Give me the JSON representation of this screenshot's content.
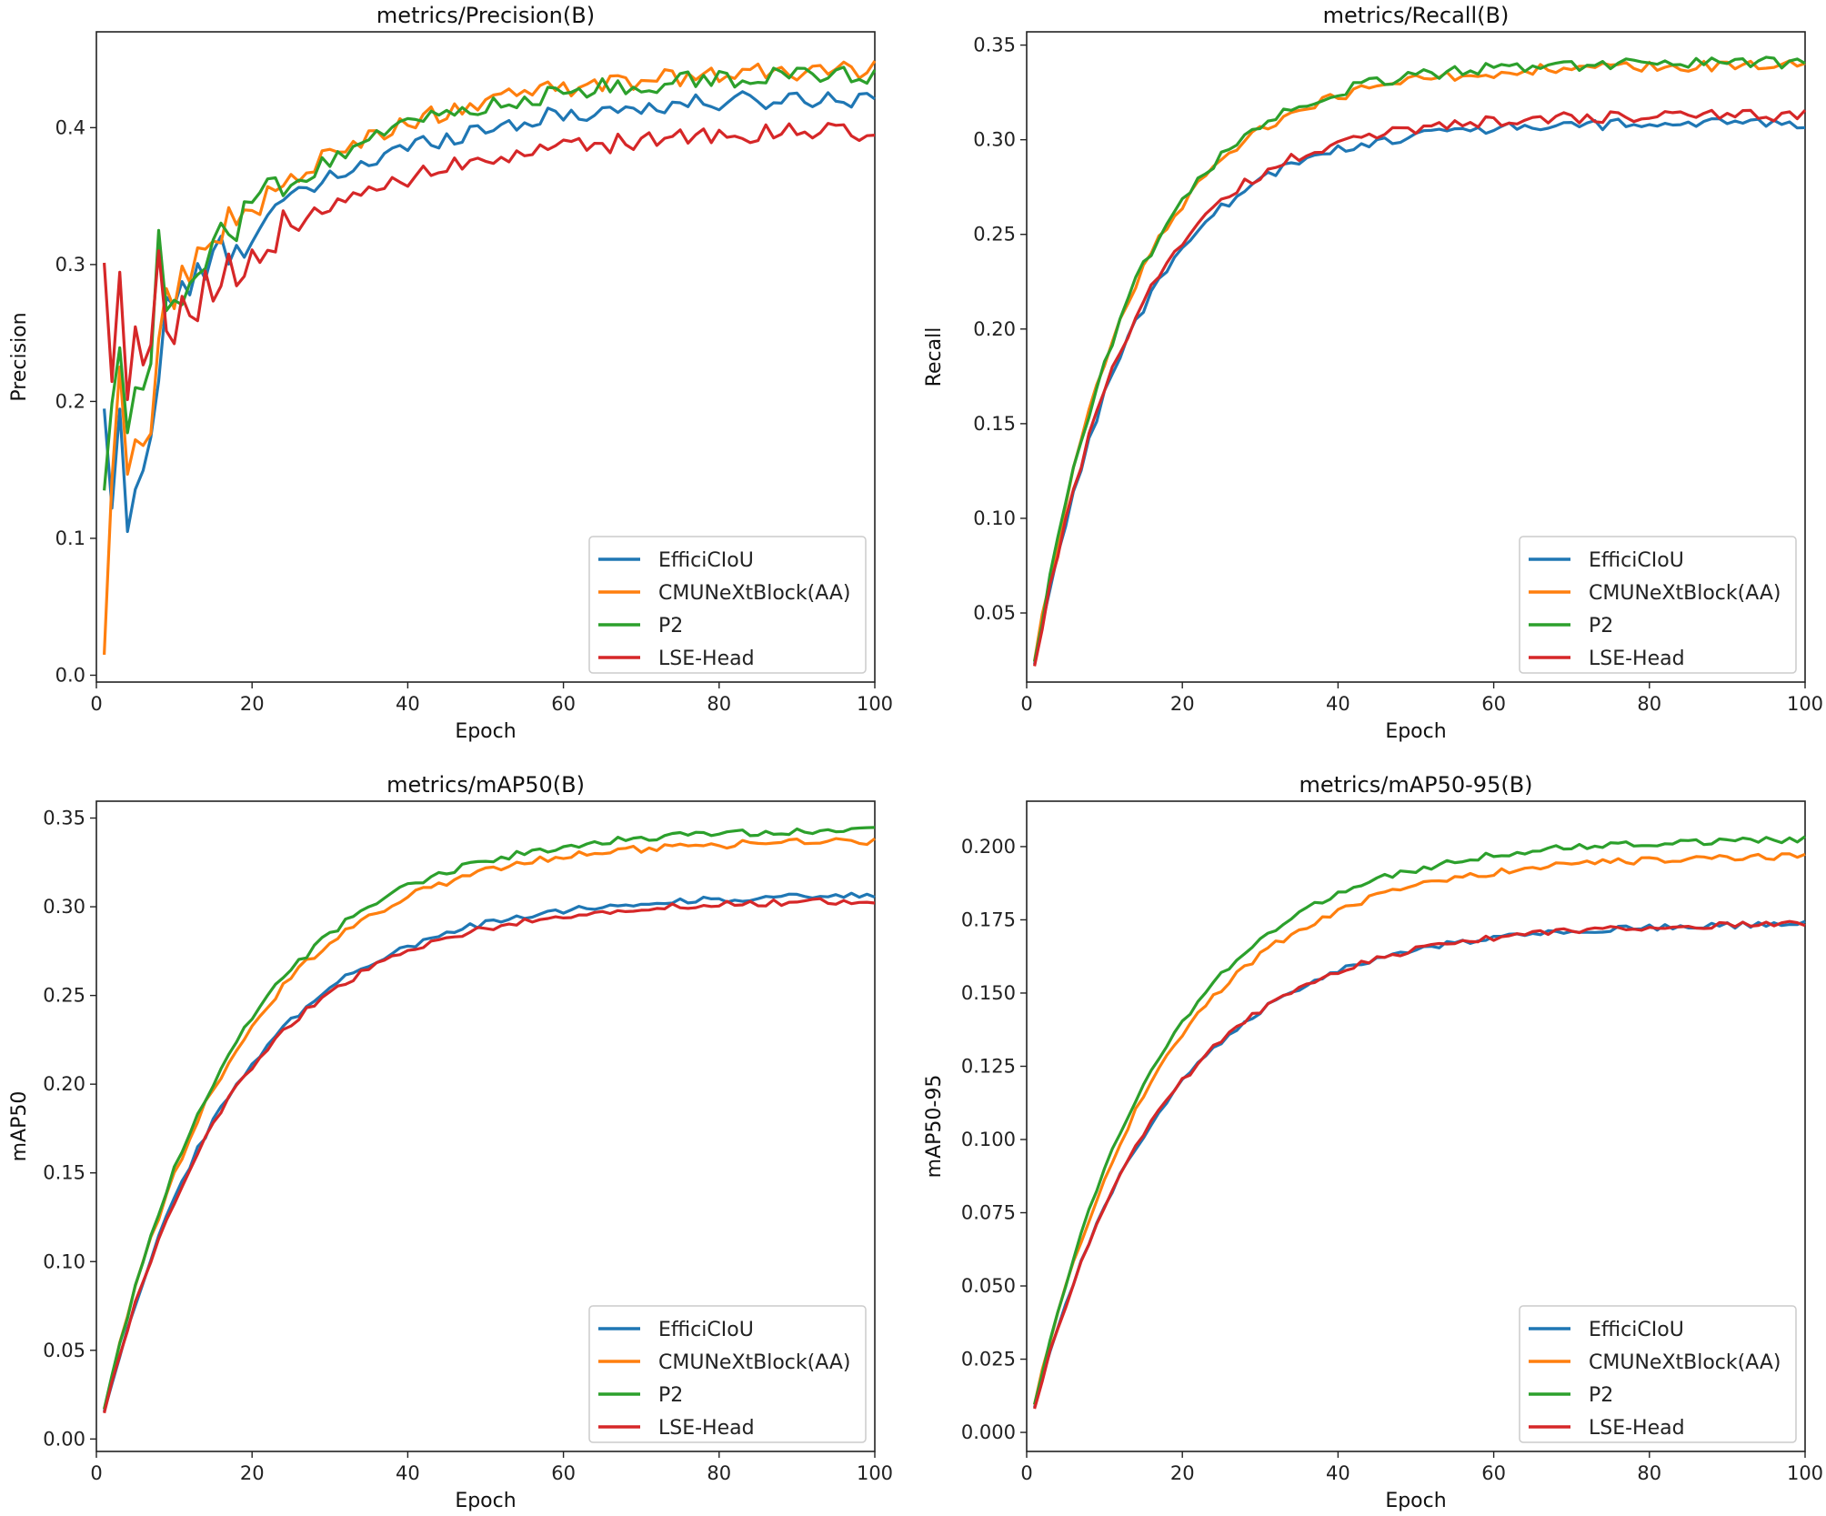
{
  "chart_data": [
    {
      "type": "line",
      "title": "metrics/Precision(B)",
      "xlabel": "Epoch",
      "ylabel": "Precision",
      "xlim": [
        0,
        100
      ],
      "ylim": [
        -0.005,
        0.47
      ],
      "xticks": [
        0,
        20,
        40,
        60,
        80,
        100
      ],
      "yticks": [
        0.0,
        0.1,
        0.2,
        0.3,
        0.4
      ],
      "ytick_decimals": 1,
      "legend": "lower-right",
      "shape": "precision",
      "end_values": {
        "EfficiCIoU": 0.425,
        "CMUNeXtBlock(AA)": 0.445,
        "P2": 0.442,
        "LSE-Head": 0.4
      }
    },
    {
      "type": "line",
      "title": "metrics/Recall(B)",
      "xlabel": "Epoch",
      "ylabel": "Recall",
      "xlim": [
        0,
        100
      ],
      "ylim": [
        0.0135,
        0.357
      ],
      "xticks": [
        0,
        20,
        40,
        60,
        80,
        100
      ],
      "yticks": [
        0.05,
        0.1,
        0.15,
        0.2,
        0.25,
        0.3,
        0.35
      ],
      "ytick_decimals": 2,
      "legend": "lower-right",
      "shape": "recall",
      "end_values": {
        "EfficiCIoU": 0.309,
        "CMUNeXtBlock(AA)": 0.339,
        "P2": 0.341,
        "LSE-Head": 0.313
      }
    },
    {
      "type": "line",
      "title": "metrics/mAP50(B)",
      "xlabel": "Epoch",
      "ylabel": "mAP50",
      "xlim": [
        0,
        100
      ],
      "ylim": [
        -0.007,
        0.3595
      ],
      "xticks": [
        0,
        20,
        40,
        60,
        80,
        100
      ],
      "yticks": [
        0.0,
        0.05,
        0.1,
        0.15,
        0.2,
        0.25,
        0.3,
        0.35
      ],
      "ytick_decimals": 2,
      "legend": "lower-right",
      "shape": "map",
      "end_values": {
        "EfficiCIoU": 0.307,
        "CMUNeXtBlock(AA)": 0.338,
        "P2": 0.344,
        "LSE-Head": 0.304
      }
    },
    {
      "type": "line",
      "title": "metrics/mAP50-95(B)",
      "xlabel": "Epoch",
      "ylabel": "mAP50-95",
      "xlim": [
        0,
        100
      ],
      "ylim": [
        -0.0065,
        0.2155
      ],
      "xticks": [
        0,
        20,
        40,
        60,
        80,
        100
      ],
      "yticks": [
        0.0,
        0.025,
        0.05,
        0.075,
        0.1,
        0.125,
        0.15,
        0.175,
        0.2
      ],
      "ytick_decimals": 3,
      "legend": "lower-right",
      "shape": "map",
      "end_values": {
        "EfficiCIoU": 0.174,
        "CMUNeXtBlock(AA)": 0.197,
        "P2": 0.203,
        "LSE-Head": 0.174
      }
    }
  ],
  "series_names": [
    "EfficiCIoU",
    "CMUNeXtBlock(AA)",
    "P2",
    "LSE-Head"
  ],
  "colors": {
    "EfficiCIoU": "#1f77b4",
    "CMUNeXtBlock(AA)": "#ff7f0e",
    "P2": "#2ca02c",
    "LSE-Head": "#d62728"
  }
}
